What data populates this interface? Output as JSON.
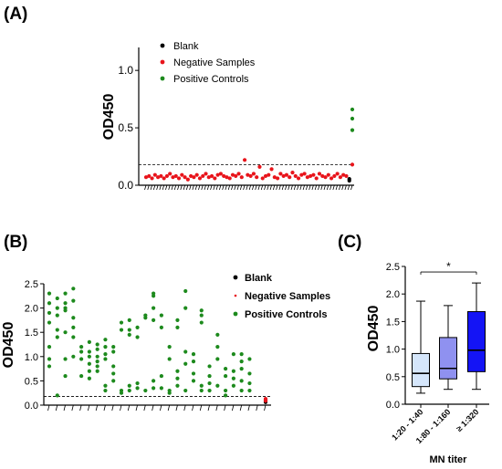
{
  "chart_data": [
    {
      "panel": "(A)",
      "type": "scatter",
      "ylabel": "OD450",
      "ylim": [
        0,
        1.2
      ],
      "yticks": [
        "0.0",
        "0.5",
        "1.0"
      ],
      "legend": [
        "Blank",
        "Negative Samples",
        "Positive Controls"
      ],
      "legend_colors": [
        "#000000",
        "#e8141b",
        "#1d8a1d"
      ],
      "cutoff": 0.18,
      "series": [
        {
          "name": "Blank",
          "points": [
            [
              69,
              0.04
            ],
            [
              69,
              0.055
            ]
          ]
        },
        {
          "name": "Negative Samples",
          "points": [
            [
              1,
              0.07
            ],
            [
              2,
              0.08
            ],
            [
              3,
              0.06
            ],
            [
              4,
              0.09
            ],
            [
              5,
              0.07
            ],
            [
              6,
              0.08
            ],
            [
              7,
              0.06
            ],
            [
              8,
              0.08
            ],
            [
              9,
              0.1
            ],
            [
              10,
              0.07
            ],
            [
              11,
              0.08
            ],
            [
              12,
              0.06
            ],
            [
              13,
              0.09
            ],
            [
              14,
              0.07
            ],
            [
              15,
              0.05
            ],
            [
              16,
              0.08
            ],
            [
              17,
              0.07
            ],
            [
              18,
              0.09
            ],
            [
              19,
              0.06
            ],
            [
              20,
              0.08
            ],
            [
              21,
              0.1
            ],
            [
              22,
              0.07
            ],
            [
              23,
              0.08
            ],
            [
              24,
              0.06
            ],
            [
              25,
              0.09
            ],
            [
              26,
              0.1
            ],
            [
              27,
              0.08
            ],
            [
              28,
              0.07
            ],
            [
              29,
              0.06
            ],
            [
              30,
              0.09
            ],
            [
              31,
              0.08
            ],
            [
              32,
              0.1
            ],
            [
              33,
              0.07
            ],
            [
              34,
              0.22
            ],
            [
              35,
              0.09
            ],
            [
              36,
              0.08
            ],
            [
              37,
              0.1
            ],
            [
              38,
              0.07
            ],
            [
              39,
              0.16
            ],
            [
              40,
              0.06
            ],
            [
              41,
              0.08
            ],
            [
              42,
              0.09
            ],
            [
              43,
              0.14
            ],
            [
              44,
              0.07
            ],
            [
              45,
              0.06
            ],
            [
              46,
              0.1
            ],
            [
              47,
              0.08
            ],
            [
              48,
              0.09
            ],
            [
              49,
              0.07
            ],
            [
              50,
              0.11
            ],
            [
              51,
              0.08
            ],
            [
              52,
              0.06
            ],
            [
              53,
              0.09
            ],
            [
              54,
              0.1
            ],
            [
              55,
              0.07
            ],
            [
              56,
              0.08
            ],
            [
              57,
              0.09
            ],
            [
              58,
              0.06
            ],
            [
              59,
              0.1
            ],
            [
              60,
              0.08
            ],
            [
              61,
              0.07
            ],
            [
              62,
              0.09
            ],
            [
              63,
              0.06
            ],
            [
              64,
              0.08
            ],
            [
              65,
              0.1
            ],
            [
              66,
              0.07
            ],
            [
              67,
              0.09
            ],
            [
              68,
              0.08
            ],
            [
              70,
              0.18
            ]
          ]
        },
        {
          "name": "Positive Controls",
          "points": [
            [
              70,
              0.48
            ],
            [
              70,
              0.58
            ],
            [
              70,
              0.66
            ]
          ]
        }
      ]
    },
    {
      "panel": "(B)",
      "type": "scatter",
      "ylabel": "OD450",
      "ylim": [
        0,
        2.5
      ],
      "yticks": [
        "0.0",
        "0.5",
        "1.0",
        "1.5",
        "2.0",
        "2.5"
      ],
      "legend": [
        "Blank",
        "Negative Samples",
        "Positive Controls"
      ],
      "legend_colors": [
        "#000000",
        "#e8141b",
        "#1d8a1d"
      ],
      "cutoff": 0.18,
      "series": [
        {
          "name": "Blank",
          "points": [
            [
              28,
              0.1
            ],
            [
              28,
              0.06
            ]
          ]
        },
        {
          "name": "Negative Samples",
          "points": [
            [
              28,
              0.13
            ],
            [
              28,
              0.09
            ]
          ]
        },
        {
          "name": "Positive Controls",
          "points": [
            [
              1,
              2.3
            ],
            [
              1,
              2.1
            ],
            [
              1,
              1.9
            ],
            [
              1,
              1.7
            ],
            [
              1,
              1.2
            ],
            [
              1,
              0.95
            ],
            [
              1,
              0.8
            ],
            [
              2,
              2.2
            ],
            [
              2,
              2.0
            ],
            [
              2,
              1.85
            ],
            [
              2,
              1.55
            ],
            [
              2,
              1.4
            ],
            [
              2,
              0.2
            ],
            [
              3,
              2.3
            ],
            [
              3,
              2.1
            ],
            [
              3,
              2.0
            ],
            [
              3,
              1.95
            ],
            [
              3,
              1.5
            ],
            [
              3,
              0.95
            ],
            [
              3,
              0.6
            ],
            [
              4,
              2.4
            ],
            [
              4,
              2.15
            ],
            [
              4,
              1.8
            ],
            [
              4,
              1.6
            ],
            [
              4,
              1.4
            ],
            [
              4,
              1.0
            ],
            [
              5,
              1.2
            ],
            [
              5,
              1.1
            ],
            [
              5,
              0.95
            ],
            [
              5,
              0.6
            ],
            [
              6,
              1.3
            ],
            [
              6,
              1.1
            ],
            [
              6,
              1.0
            ],
            [
              6,
              0.85
            ],
            [
              6,
              0.7
            ],
            [
              6,
              0.55
            ],
            [
              7,
              1.25
            ],
            [
              7,
              1.15
            ],
            [
              7,
              1.0
            ],
            [
              7,
              0.9
            ],
            [
              7,
              0.8
            ],
            [
              7,
              0.7
            ],
            [
              8,
              1.35
            ],
            [
              8,
              1.2
            ],
            [
              8,
              1.05
            ],
            [
              8,
              0.95
            ],
            [
              8,
              0.4
            ],
            [
              8,
              0.3
            ],
            [
              9,
              1.2
            ],
            [
              9,
              1.1
            ],
            [
              9,
              0.8
            ],
            [
              9,
              0.65
            ],
            [
              9,
              0.5
            ],
            [
              10,
              1.7
            ],
            [
              10,
              1.55
            ],
            [
              10,
              0.3
            ],
            [
              10,
              0.25
            ],
            [
              11,
              1.75
            ],
            [
              11,
              1.55
            ],
            [
              11,
              1.45
            ],
            [
              11,
              0.4
            ],
            [
              11,
              0.3
            ],
            [
              12,
              1.6
            ],
            [
              12,
              1.4
            ],
            [
              12,
              0.45
            ],
            [
              12,
              0.35
            ],
            [
              13,
              1.85
            ],
            [
              13,
              1.8
            ],
            [
              13,
              0.3
            ],
            [
              14,
              2.3
            ],
            [
              14,
              2.25
            ],
            [
              14,
              2.0
            ],
            [
              14,
              1.75
            ],
            [
              14,
              0.5
            ],
            [
              14,
              0.35
            ],
            [
              15,
              1.85
            ],
            [
              15,
              1.6
            ],
            [
              15,
              0.6
            ],
            [
              15,
              0.35
            ],
            [
              16,
              1.2
            ],
            [
              16,
              0.95
            ],
            [
              16,
              0.3
            ],
            [
              16,
              0.25
            ],
            [
              17,
              1.75
            ],
            [
              17,
              1.6
            ],
            [
              17,
              0.7
            ],
            [
              17,
              0.55
            ],
            [
              17,
              0.4
            ],
            [
              18,
              2.35
            ],
            [
              18,
              2.0
            ],
            [
              18,
              1.1
            ],
            [
              18,
              0.85
            ],
            [
              18,
              0.3
            ],
            [
              19,
              1.05
            ],
            [
              19,
              0.9
            ],
            [
              19,
              0.65
            ],
            [
              19,
              0.5
            ],
            [
              20,
              1.95
            ],
            [
              20,
              1.85
            ],
            [
              20,
              1.7
            ],
            [
              20,
              0.4
            ],
            [
              20,
              0.3
            ],
            [
              21,
              0.8
            ],
            [
              21,
              0.6
            ],
            [
              21,
              0.45
            ],
            [
              21,
              0.3
            ],
            [
              22,
              1.45
            ],
            [
              22,
              1.2
            ],
            [
              22,
              0.95
            ],
            [
              22,
              0.4
            ],
            [
              23,
              0.75
            ],
            [
              23,
              0.6
            ],
            [
              23,
              0.3
            ],
            [
              23,
              0.2
            ],
            [
              24,
              1.05
            ],
            [
              24,
              0.7
            ],
            [
              24,
              0.55
            ],
            [
              24,
              0.4
            ],
            [
              25,
              1.05
            ],
            [
              25,
              0.9
            ],
            [
              25,
              0.75
            ],
            [
              25,
              0.5
            ],
            [
              25,
              0.3
            ],
            [
              26,
              0.95
            ],
            [
              26,
              0.65
            ],
            [
              26,
              0.45
            ],
            [
              26,
              0.3
            ]
          ]
        }
      ]
    },
    {
      "panel": "(C)",
      "type": "box",
      "ylabel": "OD450",
      "xlabel": "MN titer",
      "ylim": [
        0,
        2.5
      ],
      "yticks": [
        "0.0",
        "0.5",
        "1.0",
        "1.5",
        "2.0",
        "2.5"
      ],
      "categories": [
        "1:20 - 1:40",
        "1:80 - 1:160",
        "≥ 1:320"
      ],
      "colors": [
        "#d5e6fb",
        "#8f91f0",
        "#1414f5"
      ],
      "boxes": [
        {
          "min": 0.2,
          "q1": 0.32,
          "median": 0.56,
          "q3": 0.92,
          "max": 1.87
        },
        {
          "min": 0.27,
          "q1": 0.46,
          "median": 0.65,
          "q3": 1.21,
          "max": 1.79
        },
        {
          "min": 0.27,
          "q1": 0.59,
          "median": 0.98,
          "q3": 1.68,
          "max": 2.2
        }
      ],
      "significance": {
        "from": 0,
        "to": 2,
        "y": 2.4,
        "label": "*"
      }
    }
  ]
}
